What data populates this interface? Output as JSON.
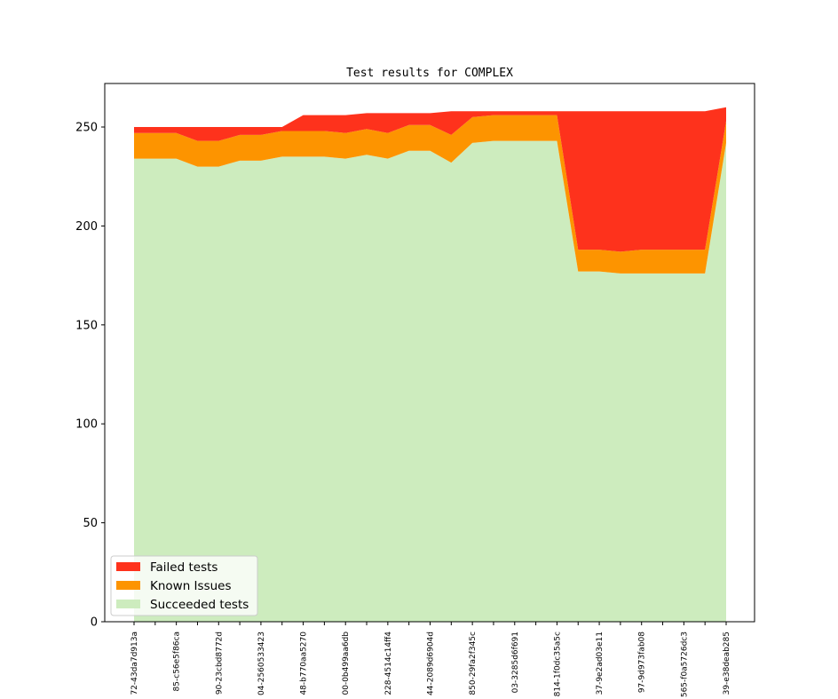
{
  "chart_data": {
    "type": "area",
    "stacked": true,
    "title": "Test results for COMPLEX",
    "xlabel": "",
    "ylabel": "",
    "ylim": [
      0,
      272
    ],
    "yticks": [
      0,
      50,
      100,
      150,
      200,
      250
    ],
    "grid": false,
    "legend_position": "lower-left",
    "categories": [
      "",
      "",
      "",
      "",
      "",
      "",
      "",
      "",
      "",
      "",
      "",
      "",
      "",
      "",
      "",
      "",
      "",
      "",
      "",
      "",
      "",
      "",
      "",
      "",
      "",
      "",
      "",
      "",
      ""
    ],
    "tick_labels": [
      "72-43da7d913a",
      "",
      "85-c56e5f86ca",
      "",
      "90-23cbd8772d",
      "",
      "04-2560533423",
      "",
      "48-b770aa5270",
      "",
      "00-0b499aa6db",
      "",
      "228-4514c14ff4",
      "",
      "44-2089d6904d",
      "",
      "850-29fa2f345c",
      "",
      "03-3285d6f691",
      "",
      "814-1f0dc35a5c",
      "",
      "37-9e2ad03e11",
      "",
      "97-9d973fab08",
      "",
      "565-f0a5726dc3",
      "",
      "39-e38deab285"
    ],
    "series": [
      {
        "name": "Succeeded tests",
        "color": "#cdecbe",
        "values": [
          234,
          234,
          234,
          230,
          230,
          233,
          233,
          235,
          235,
          235,
          234,
          236,
          234,
          238,
          238,
          232,
          242,
          243,
          243,
          243,
          243,
          177,
          177,
          176,
          176,
          176,
          176,
          176,
          242
        ]
      },
      {
        "name": "Known Issues",
        "color": "#fd9400",
        "values": [
          13,
          13,
          13,
          13,
          13,
          13,
          13,
          13,
          13,
          13,
          13,
          13,
          13,
          13,
          13,
          14,
          13,
          13,
          13,
          13,
          13,
          11,
          11,
          11,
          12,
          12,
          12,
          12,
          11
        ]
      },
      {
        "name": "Failed tests",
        "color": "#fe321c",
        "values": [
          3,
          3,
          3,
          7,
          7,
          4,
          4,
          2,
          8,
          8,
          9,
          8,
          10,
          6,
          6,
          12,
          3,
          2,
          2,
          2,
          2,
          70,
          70,
          71,
          70,
          70,
          70,
          70,
          7
        ]
      }
    ]
  }
}
